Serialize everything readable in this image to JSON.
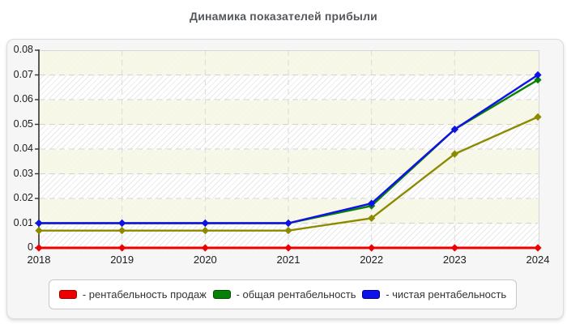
{
  "title": "Динамика показателей прибыли",
  "chart_data": {
    "type": "line",
    "title": "Динамика показателей прибыли",
    "x_labels": [
      "2018",
      "2019",
      "2020",
      "2021",
      "2022",
      "2023",
      "2024"
    ],
    "y_ticks": [
      "0",
      "0.01",
      "0.02",
      "0.03",
      "0.04",
      "0.05",
      "0.06",
      "0.07",
      "0.08"
    ],
    "ylim": [
      0,
      0.08
    ],
    "grid": "dashed",
    "legend_position": "bottom",
    "series": [
      {
        "name": "рентабельность продаж",
        "color": "#ee0000",
        "marker": "diamond",
        "in_legend": true,
        "values": [
          0,
          0,
          0,
          0,
          0,
          0,
          0
        ]
      },
      {
        "name": "общая рентабельность",
        "color": "#068006",
        "marker": "diamond",
        "in_legend": true,
        "values": [
          0.01,
          0.01,
          0.01,
          0.01,
          0.017,
          0.048,
          0.068
        ]
      },
      {
        "name": "чистая рентабельность",
        "color": "#1010e8",
        "marker": "diamond",
        "in_legend": true,
        "values": [
          0.01,
          0.01,
          0.01,
          0.01,
          0.018,
          0.048,
          0.07
        ]
      },
      {
        "name": "",
        "color": "#8b8b00",
        "marker": "diamond",
        "in_legend": false,
        "values": [
          0.007,
          0.007,
          0.007,
          0.007,
          0.012,
          0.038,
          0.053
        ]
      }
    ]
  },
  "legend": {
    "items": [
      {
        "label": "- рентабельность продаж",
        "color": "#ee0000",
        "border": "#a00000"
      },
      {
        "label": "- общая рентабельность",
        "color": "#068006",
        "border": "#004d00"
      },
      {
        "label": "- чистая рентабельность",
        "color": "#1010e8",
        "border": "#000090"
      }
    ]
  },
  "colors": {
    "panel_bg": "#f6f6f6",
    "plot_band_cream": "#f7f7e6",
    "gridline": "#d3d3d3",
    "axis": "#333333"
  }
}
